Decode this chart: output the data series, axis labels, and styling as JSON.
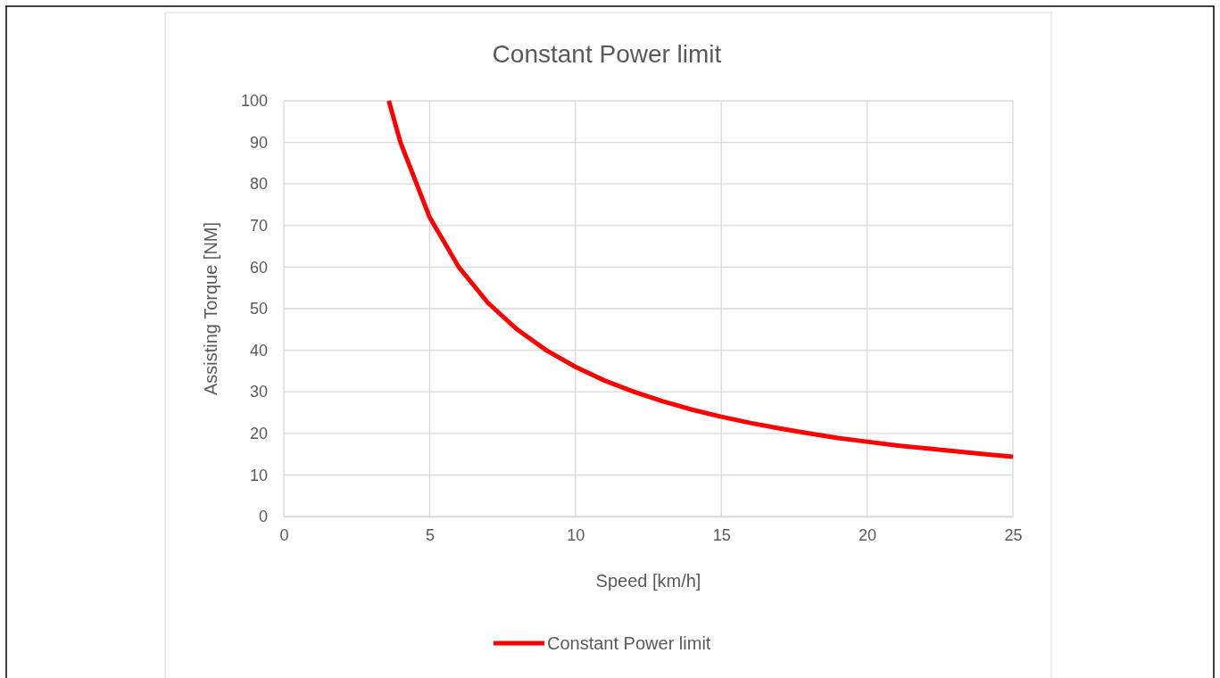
{
  "chart_data": {
    "type": "line",
    "title": "Constant Power limit",
    "xlabel": "Speed [km/h]",
    "ylabel": "Assisting Torque [NM]",
    "x": [
      3.6,
      4,
      5,
      6,
      7,
      8,
      9,
      10,
      11,
      12,
      13,
      14,
      15,
      16,
      17,
      18,
      19,
      20,
      21,
      22,
      23,
      24,
      25
    ],
    "series": [
      {
        "name": "Constant Power limit",
        "color": "#ff0000",
        "values": [
          100,
          90,
          72,
          60,
          51.4,
          45,
          40,
          36,
          32.7,
          30,
          27.7,
          25.7,
          24,
          22.5,
          21.2,
          20,
          18.9,
          18,
          17.1,
          16.4,
          15.7,
          15,
          14.4
        ]
      }
    ],
    "xlim": [
      0,
      25
    ],
    "xticks": [
      0,
      5,
      10,
      15,
      20,
      25
    ],
    "ylim": [
      0,
      100
    ],
    "yticks": [
      0,
      10,
      20,
      30,
      40,
      50,
      60,
      70,
      80,
      90,
      100
    ],
    "grid": true,
    "legend": "bottom"
  }
}
